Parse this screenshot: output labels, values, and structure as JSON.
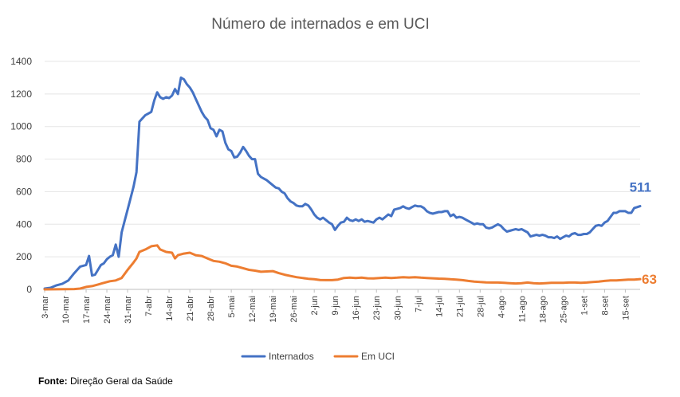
{
  "chart_data": {
    "type": "line",
    "title": "Número de internados e em UCI",
    "xlabel": "",
    "ylabel": "",
    "ylim": [
      0,
      1400
    ],
    "yticks": [
      0,
      200,
      400,
      600,
      800,
      1000,
      1200,
      1400
    ],
    "grid": true,
    "legend_position": "bottom",
    "x_tick_labels": [
      "3-mar",
      "10-mar",
      "17-mar",
      "24-mar",
      "31-mar",
      "7-abr",
      "14-abr",
      "21-abr",
      "28-abr",
      "5-mai",
      "12-mai",
      "19-mai",
      "26-mai",
      "2-jun",
      "9-jun",
      "16-jun",
      "23-jun",
      "30-jun",
      "7-jul",
      "14-jul",
      "21-jul",
      "28-jul",
      "4-ago",
      "11-ago",
      "18-ago",
      "25-ago",
      "1-set",
      "8-set",
      "15-set"
    ],
    "day_count": 202,
    "series": [
      {
        "name": "Internados",
        "color": "#4472C4",
        "end_label": "511",
        "points": [
          [
            0,
            5
          ],
          [
            2,
            10
          ],
          [
            4,
            25
          ],
          [
            6,
            35
          ],
          [
            8,
            55
          ],
          [
            10,
            100
          ],
          [
            12,
            140
          ],
          [
            14,
            150
          ],
          [
            15,
            205
          ],
          [
            16,
            85
          ],
          [
            17,
            90
          ],
          [
            18,
            120
          ],
          [
            19,
            150
          ],
          [
            20,
            160
          ],
          [
            21,
            185
          ],
          [
            22,
            200
          ],
          [
            23,
            210
          ],
          [
            24,
            275
          ],
          [
            25,
            200
          ],
          [
            26,
            350
          ],
          [
            27,
            420
          ],
          [
            28,
            490
          ],
          [
            29,
            560
          ],
          [
            30,
            630
          ],
          [
            31,
            720
          ],
          [
            32,
            1030
          ],
          [
            33,
            1050
          ],
          [
            34,
            1070
          ],
          [
            35,
            1080
          ],
          [
            36,
            1090
          ],
          [
            37,
            1160
          ],
          [
            38,
            1210
          ],
          [
            39,
            1180
          ],
          [
            40,
            1170
          ],
          [
            41,
            1180
          ],
          [
            42,
            1175
          ],
          [
            43,
            1190
          ],
          [
            44,
            1230
          ],
          [
            45,
            1200
          ],
          [
            46,
            1300
          ],
          [
            47,
            1290
          ],
          [
            48,
            1260
          ],
          [
            49,
            1240
          ],
          [
            50,
            1210
          ],
          [
            51,
            1170
          ],
          [
            52,
            1130
          ],
          [
            53,
            1090
          ],
          [
            54,
            1060
          ],
          [
            55,
            1040
          ],
          [
            56,
            990
          ],
          [
            57,
            980
          ],
          [
            58,
            940
          ],
          [
            59,
            980
          ],
          [
            60,
            970
          ],
          [
            61,
            900
          ],
          [
            62,
            860
          ],
          [
            63,
            850
          ],
          [
            64,
            810
          ],
          [
            65,
            815
          ],
          [
            66,
            840
          ],
          [
            67,
            875
          ],
          [
            68,
            850
          ],
          [
            69,
            820
          ],
          [
            70,
            800
          ],
          [
            71,
            800
          ],
          [
            72,
            710
          ],
          [
            73,
            690
          ],
          [
            74,
            680
          ],
          [
            75,
            670
          ],
          [
            76,
            655
          ],
          [
            77,
            640
          ],
          [
            78,
            625
          ],
          [
            79,
            620
          ],
          [
            80,
            600
          ],
          [
            81,
            590
          ],
          [
            82,
            560
          ],
          [
            83,
            540
          ],
          [
            84,
            530
          ],
          [
            85,
            515
          ],
          [
            86,
            510
          ],
          [
            87,
            510
          ],
          [
            88,
            525
          ],
          [
            89,
            515
          ],
          [
            90,
            490
          ],
          [
            91,
            460
          ],
          [
            92,
            440
          ],
          [
            93,
            430
          ],
          [
            94,
            440
          ],
          [
            95,
            425
          ],
          [
            96,
            410
          ],
          [
            97,
            400
          ],
          [
            98,
            365
          ],
          [
            99,
            390
          ],
          [
            100,
            410
          ],
          [
            101,
            415
          ],
          [
            102,
            440
          ],
          [
            103,
            425
          ],
          [
            104,
            420
          ],
          [
            105,
            430
          ],
          [
            106,
            420
          ],
          [
            107,
            430
          ],
          [
            108,
            415
          ],
          [
            109,
            420
          ],
          [
            110,
            415
          ],
          [
            111,
            410
          ],
          [
            112,
            430
          ],
          [
            113,
            440
          ],
          [
            114,
            430
          ],
          [
            115,
            445
          ],
          [
            116,
            460
          ],
          [
            117,
            450
          ],
          [
            118,
            490
          ],
          [
            119,
            495
          ],
          [
            120,
            500
          ],
          [
            121,
            510
          ],
          [
            122,
            500
          ],
          [
            123,
            495
          ],
          [
            124,
            505
          ],
          [
            125,
            515
          ],
          [
            126,
            510
          ],
          [
            127,
            510
          ],
          [
            128,
            500
          ],
          [
            129,
            480
          ],
          [
            130,
            470
          ],
          [
            131,
            465
          ],
          [
            132,
            470
          ],
          [
            133,
            475
          ],
          [
            134,
            475
          ],
          [
            135,
            480
          ],
          [
            136,
            480
          ],
          [
            137,
            450
          ],
          [
            138,
            460
          ],
          [
            139,
            440
          ],
          [
            140,
            445
          ],
          [
            141,
            440
          ],
          [
            142,
            430
          ],
          [
            143,
            420
          ],
          [
            144,
            410
          ],
          [
            145,
            400
          ],
          [
            146,
            405
          ],
          [
            147,
            400
          ],
          [
            148,
            400
          ],
          [
            149,
            380
          ],
          [
            150,
            375
          ],
          [
            151,
            380
          ],
          [
            152,
            390
          ],
          [
            153,
            400
          ],
          [
            154,
            390
          ],
          [
            155,
            370
          ],
          [
            156,
            355
          ],
          [
            157,
            360
          ],
          [
            158,
            365
          ],
          [
            159,
            370
          ],
          [
            160,
            365
          ],
          [
            161,
            370
          ],
          [
            162,
            360
          ],
          [
            163,
            350
          ],
          [
            164,
            325
          ],
          [
            165,
            330
          ],
          [
            166,
            335
          ],
          [
            167,
            330
          ],
          [
            168,
            335
          ],
          [
            169,
            330
          ],
          [
            170,
            320
          ],
          [
            171,
            320
          ],
          [
            172,
            315
          ],
          [
            173,
            325
          ],
          [
            174,
            310
          ],
          [
            175,
            320
          ],
          [
            176,
            330
          ],
          [
            177,
            325
          ],
          [
            178,
            340
          ],
          [
            179,
            345
          ],
          [
            180,
            335
          ],
          [
            181,
            335
          ],
          [
            182,
            340
          ],
          [
            183,
            340
          ],
          [
            184,
            350
          ],
          [
            185,
            370
          ],
          [
            186,
            390
          ],
          [
            187,
            395
          ],
          [
            188,
            390
          ],
          [
            189,
            410
          ],
          [
            190,
            420
          ],
          [
            191,
            445
          ],
          [
            192,
            470
          ],
          [
            193,
            470
          ],
          [
            194,
            480
          ],
          [
            195,
            480
          ],
          [
            196,
            480
          ],
          [
            197,
            470
          ],
          [
            198,
            470
          ],
          [
            199,
            500
          ],
          [
            200,
            505
          ],
          [
            201,
            511
          ]
        ]
      },
      {
        "name": "Em UCI",
        "color": "#ED7D31",
        "end_label": "63",
        "points": [
          [
            0,
            0
          ],
          [
            10,
            2
          ],
          [
            12,
            5
          ],
          [
            14,
            15
          ],
          [
            16,
            20
          ],
          [
            18,
            30
          ],
          [
            20,
            40
          ],
          [
            22,
            50
          ],
          [
            24,
            55
          ],
          [
            26,
            70
          ],
          [
            28,
            120
          ],
          [
            30,
            165
          ],
          [
            31,
            190
          ],
          [
            32,
            230
          ],
          [
            34,
            245
          ],
          [
            35,
            255
          ],
          [
            36,
            265
          ],
          [
            38,
            270
          ],
          [
            39,
            245
          ],
          [
            41,
            230
          ],
          [
            43,
            225
          ],
          [
            44,
            190
          ],
          [
            45,
            210
          ],
          [
            47,
            220
          ],
          [
            49,
            225
          ],
          [
            51,
            210
          ],
          [
            53,
            205
          ],
          [
            55,
            190
          ],
          [
            57,
            175
          ],
          [
            59,
            170
          ],
          [
            61,
            160
          ],
          [
            63,
            145
          ],
          [
            65,
            140
          ],
          [
            67,
            130
          ],
          [
            69,
            120
          ],
          [
            71,
            115
          ],
          [
            73,
            108
          ],
          [
            75,
            110
          ],
          [
            77,
            112
          ],
          [
            79,
            100
          ],
          [
            81,
            90
          ],
          [
            83,
            82
          ],
          [
            85,
            75
          ],
          [
            87,
            70
          ],
          [
            89,
            65
          ],
          [
            91,
            62
          ],
          [
            93,
            58
          ],
          [
            95,
            57
          ],
          [
            97,
            57
          ],
          [
            99,
            60
          ],
          [
            101,
            70
          ],
          [
            103,
            72
          ],
          [
            105,
            70
          ],
          [
            107,
            72
          ],
          [
            109,
            68
          ],
          [
            111,
            67
          ],
          [
            113,
            70
          ],
          [
            115,
            72
          ],
          [
            117,
            70
          ],
          [
            119,
            72
          ],
          [
            121,
            75
          ],
          [
            123,
            73
          ],
          [
            125,
            75
          ],
          [
            127,
            72
          ],
          [
            129,
            70
          ],
          [
            131,
            68
          ],
          [
            133,
            66
          ],
          [
            135,
            65
          ],
          [
            137,
            62
          ],
          [
            139,
            60
          ],
          [
            141,
            57
          ],
          [
            143,
            52
          ],
          [
            145,
            48
          ],
          [
            147,
            45
          ],
          [
            149,
            43
          ],
          [
            151,
            42
          ],
          [
            153,
            42
          ],
          [
            155,
            40
          ],
          [
            157,
            38
          ],
          [
            159,
            36
          ],
          [
            161,
            38
          ],
          [
            163,
            42
          ],
          [
            165,
            38
          ],
          [
            167,
            36
          ],
          [
            169,
            38
          ],
          [
            171,
            40
          ],
          [
            173,
            40
          ],
          [
            175,
            40
          ],
          [
            177,
            42
          ],
          [
            179,
            42
          ],
          [
            181,
            40
          ],
          [
            183,
            42
          ],
          [
            185,
            45
          ],
          [
            187,
            48
          ],
          [
            189,
            52
          ],
          [
            191,
            55
          ],
          [
            193,
            55
          ],
          [
            195,
            58
          ],
          [
            197,
            60
          ],
          [
            199,
            60
          ],
          [
            201,
            63
          ]
        ]
      }
    ]
  },
  "source": {
    "label": "Fonte:",
    "text": "Direção Geral da Saúde"
  }
}
